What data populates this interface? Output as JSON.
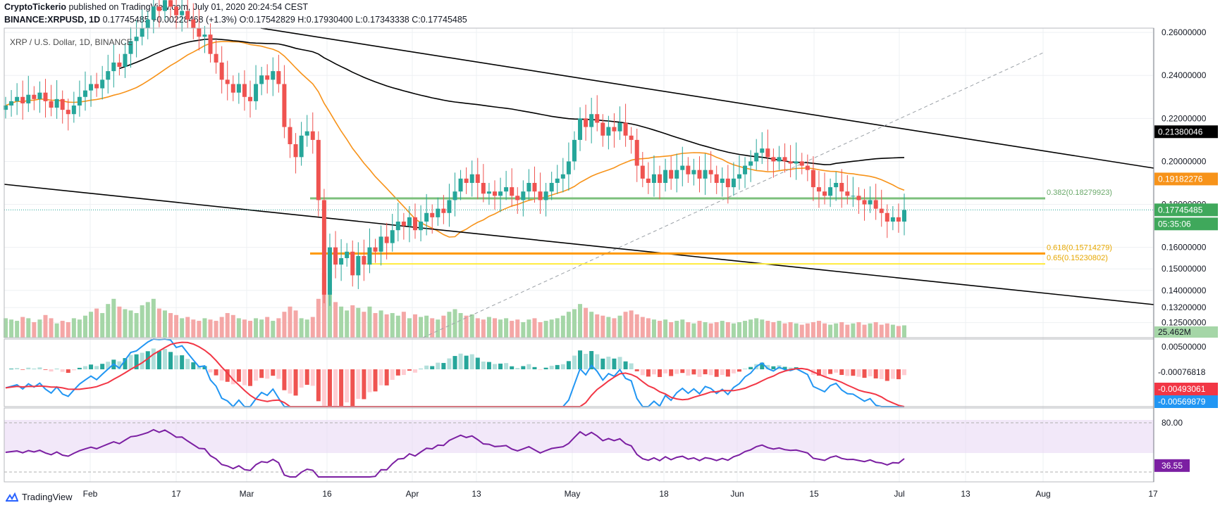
{
  "header": {
    "publisher": "CryptoTickerio",
    "published_text": "published on TradingView.com, July 01, 2020 20:24:54 CEST",
    "symbol": "BINANCE:XRPUSD, 1D",
    "change": "0.17745485 +0.00228468 (+1.3%)",
    "ohlc": "O:0.17542829 H:0.17930400 L:0.17343338 C:0.17745485"
  },
  "chart_title": "XRP / U.S. Dollar, 1D, BINANCE",
  "footer": {
    "brand": "TradingView"
  },
  "colors": {
    "up": "#26a69a",
    "down": "#ef5350",
    "ma50": "#f7931a",
    "ma200": "#000000",
    "fib382": "#7cc07c",
    "fib618": "#ff9800",
    "fib65": "#ffeb3b",
    "rsi": "#7b1fa2",
    "macd": "#2196f3",
    "signal": "#f23645"
  },
  "chart_data": {
    "type": "candlestick",
    "title": "XRP / U.S. Dollar, 1D, BINANCE",
    "x_tick_labels": [
      "Feb",
      "17",
      "Mar",
      "16",
      "Apr",
      "13",
      "May",
      "18",
      "Jun",
      "15",
      "Jul",
      "13",
      "Aug",
      "17"
    ],
    "y_tick_labels": [
      "0.26000000",
      "0.24000000",
      "0.22000000",
      "0.20000000",
      "0.18000000",
      "0.16000000",
      "0.15000000",
      "0.14000000",
      "0.13200000",
      "0.12500000"
    ],
    "y_ticks": [
      0.26,
      0.24,
      0.22,
      0.2,
      0.18,
      0.16,
      0.15,
      0.14,
      0.132,
      0.125
    ],
    "ylim": [
      0.118,
      0.262
    ],
    "last_close": 0.17745485,
    "price_labels": [
      {
        "text": "0.21380046",
        "kind": "ma200"
      },
      {
        "text": "0.19182276",
        "kind": "ma50"
      },
      {
        "text": "0.17745485",
        "kind": "last"
      },
      {
        "text": "05:35:06",
        "kind": "countdown"
      }
    ],
    "fib_levels": [
      {
        "label": "0.382(0.18279923)",
        "value": 0.18279923
      },
      {
        "label": "0.618(0.15714279)",
        "value": 0.15714279
      },
      {
        "label": "0.65(0.15230802)",
        "value": 0.15230802
      }
    ],
    "volume_label": "25.462M",
    "macd": {
      "y_tick_label": "0.00500000",
      "histogram_label": "-0.00076818",
      "signal_label": "-0.00493061",
      "macd_label": "-0.00569879"
    },
    "rsi": {
      "upper_label": "80.00",
      "value_label": "36.55",
      "value": 36.55
    },
    "closes": [
      0.226,
      0.228,
      0.23,
      0.227,
      0.231,
      0.229,
      0.232,
      0.228,
      0.225,
      0.229,
      0.224,
      0.222,
      0.226,
      0.23,
      0.233,
      0.236,
      0.234,
      0.238,
      0.242,
      0.246,
      0.244,
      0.25,
      0.256,
      0.258,
      0.262,
      0.266,
      0.272,
      0.27,
      0.275,
      0.272,
      0.268,
      0.27,
      0.266,
      0.262,
      0.258,
      0.259,
      0.25,
      0.246,
      0.238,
      0.236,
      0.232,
      0.236,
      0.23,
      0.228,
      0.236,
      0.24,
      0.238,
      0.242,
      0.236,
      0.216,
      0.208,
      0.202,
      0.212,
      0.214,
      0.21,
      0.182,
      0.138,
      0.16,
      0.152,
      0.155,
      0.158,
      0.147,
      0.156,
      0.152,
      0.16,
      0.158,
      0.165,
      0.162,
      0.168,
      0.172,
      0.17,
      0.174,
      0.168,
      0.172,
      0.176,
      0.174,
      0.178,
      0.176,
      0.182,
      0.186,
      0.192,
      0.19,
      0.194,
      0.19,
      0.185,
      0.186,
      0.184,
      0.186,
      0.188,
      0.184,
      0.182,
      0.186,
      0.19,
      0.186,
      0.182,
      0.186,
      0.19,
      0.192,
      0.194,
      0.2,
      0.21,
      0.22,
      0.216,
      0.222,
      0.218,
      0.212,
      0.216,
      0.214,
      0.218,
      0.212,
      0.21,
      0.198,
      0.192,
      0.19,
      0.194,
      0.19,
      0.196,
      0.192,
      0.196,
      0.198,
      0.194,
      0.196,
      0.192,
      0.196,
      0.194,
      0.19,
      0.192,
      0.188,
      0.192,
      0.194,
      0.198,
      0.2,
      0.204,
      0.206,
      0.202,
      0.2,
      0.202,
      0.2,
      0.199,
      0.2,
      0.198,
      0.196,
      0.188,
      0.186,
      0.184,
      0.188,
      0.19,
      0.186,
      0.184,
      0.184,
      0.182,
      0.18,
      0.182,
      0.178,
      0.176,
      0.172,
      0.174,
      0.172,
      0.1774
    ],
    "volumes": [
      0.3,
      0.28,
      0.26,
      0.32,
      0.3,
      0.24,
      0.28,
      0.35,
      0.3,
      0.22,
      0.26,
      0.24,
      0.3,
      0.28,
      0.34,
      0.4,
      0.45,
      0.38,
      0.52,
      0.6,
      0.48,
      0.44,
      0.42,
      0.38,
      0.5,
      0.55,
      0.6,
      0.45,
      0.42,
      0.38,
      0.35,
      0.3,
      0.32,
      0.28,
      0.26,
      0.3,
      0.28,
      0.26,
      0.32,
      0.38,
      0.35,
      0.3,
      0.28,
      0.26,
      0.3,
      0.28,
      0.32,
      0.26,
      0.3,
      0.4,
      0.48,
      0.42,
      0.3,
      0.28,
      0.32,
      0.6,
      1.0,
      0.75,
      0.55,
      0.48,
      0.42,
      0.5,
      0.46,
      0.4,
      0.48,
      0.38,
      0.42,
      0.36,
      0.38,
      0.34,
      0.4,
      0.3,
      0.36,
      0.32,
      0.34,
      0.3,
      0.28,
      0.34,
      0.4,
      0.44,
      0.38,
      0.34,
      0.36,
      0.3,
      0.28,
      0.32,
      0.3,
      0.28,
      0.3,
      0.26,
      0.28,
      0.24,
      0.28,
      0.3,
      0.24,
      0.26,
      0.28,
      0.3,
      0.34,
      0.4,
      0.44,
      0.52,
      0.46,
      0.4,
      0.36,
      0.34,
      0.32,
      0.3,
      0.34,
      0.4,
      0.42,
      0.36,
      0.32,
      0.3,
      0.28,
      0.26,
      0.28,
      0.24,
      0.26,
      0.28,
      0.24,
      0.22,
      0.26,
      0.24,
      0.22,
      0.24,
      0.26,
      0.24,
      0.22,
      0.24,
      0.26,
      0.28,
      0.3,
      0.28,
      0.26,
      0.24,
      0.26,
      0.22,
      0.24,
      0.22,
      0.2,
      0.22,
      0.24,
      0.26,
      0.22,
      0.2,
      0.22,
      0.24,
      0.2,
      0.22,
      0.24,
      0.2,
      0.22,
      0.24,
      0.2,
      0.22,
      0.2,
      0.18,
      0.19
    ]
  }
}
